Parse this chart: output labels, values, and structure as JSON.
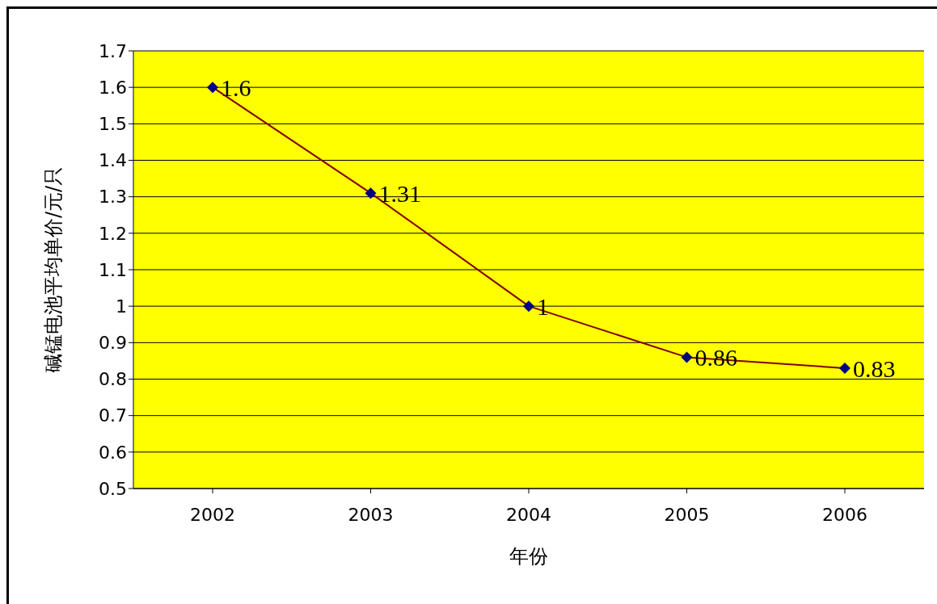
{
  "chart_data": {
    "type": "line",
    "xlabel": "年份",
    "ylabel": "碱锰电池平均单价/元/只",
    "categories": [
      "2002",
      "2003",
      "2004",
      "2005",
      "2006"
    ],
    "series": [
      {
        "color": "#800000",
        "values": [
          1.6,
          1.31,
          1,
          0.86,
          0.83
        ]
      }
    ],
    "ylim": [
      0.5,
      1.7
    ],
    "yticks": [
      0.5,
      0.6,
      0.7,
      0.8,
      0.9,
      1,
      1.1,
      1.2,
      1.3,
      1.4,
      1.5,
      1.6,
      1.7
    ],
    "grid": "y",
    "legend": false,
    "marker": "diamond",
    "line_style": "solid",
    "data_labels": true
  }
}
